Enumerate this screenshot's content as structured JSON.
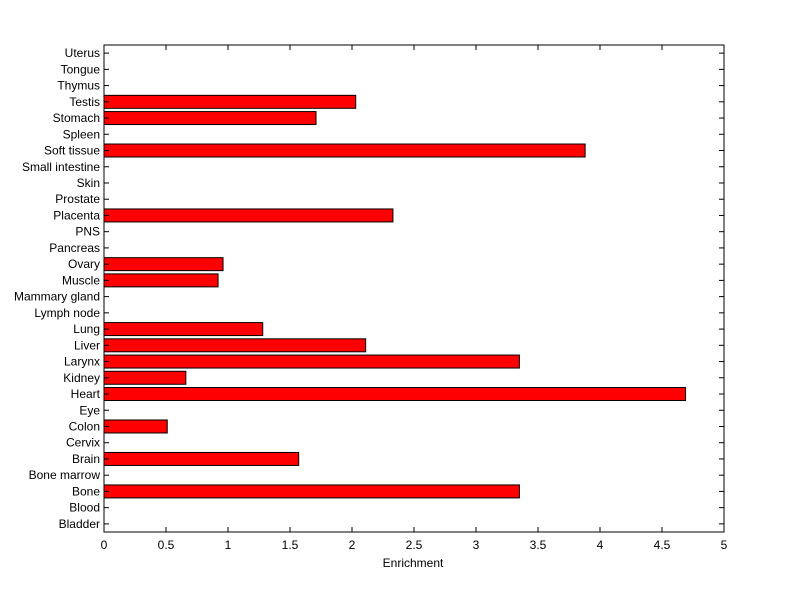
{
  "chart_data": {
    "type": "bar",
    "orientation": "horizontal",
    "categories": [
      "Bladder",
      "Blood",
      "Bone",
      "Bone marrow",
      "Brain",
      "Cervix",
      "Colon",
      "Eye",
      "Heart",
      "Kidney",
      "Larynx",
      "Liver",
      "Lung",
      "Lymph node",
      "Mammary gland",
      "Muscle",
      "Ovary",
      "Pancreas",
      "PNS",
      "Placenta",
      "Prostate",
      "Skin",
      "Small intestine",
      "Soft tissue",
      "Spleen",
      "Stomach",
      "Testis",
      "Thymus",
      "Tongue",
      "Uterus"
    ],
    "values": [
      0,
      0,
      3.35,
      0,
      1.57,
      0,
      0.51,
      0,
      4.69,
      0.66,
      3.35,
      2.11,
      1.28,
      0,
      0,
      0.92,
      0.96,
      0,
      0,
      2.33,
      0,
      0,
      0,
      3.88,
      0,
      1.71,
      2.03,
      0,
      0,
      0
    ],
    "xlabel": "Enrichment",
    "ylabel": "",
    "xlim": [
      0,
      5
    ],
    "xticks": [
      0,
      0.5,
      1,
      1.5,
      2,
      2.5,
      3,
      3.5,
      4,
      4.5,
      5
    ],
    "xtick_labels": [
      "0",
      "0.5",
      "1",
      "1.5",
      "2",
      "2.5",
      "3",
      "3.5",
      "4",
      "4.5",
      "5"
    ],
    "bar_color": "#ff0000",
    "grid": false
  }
}
